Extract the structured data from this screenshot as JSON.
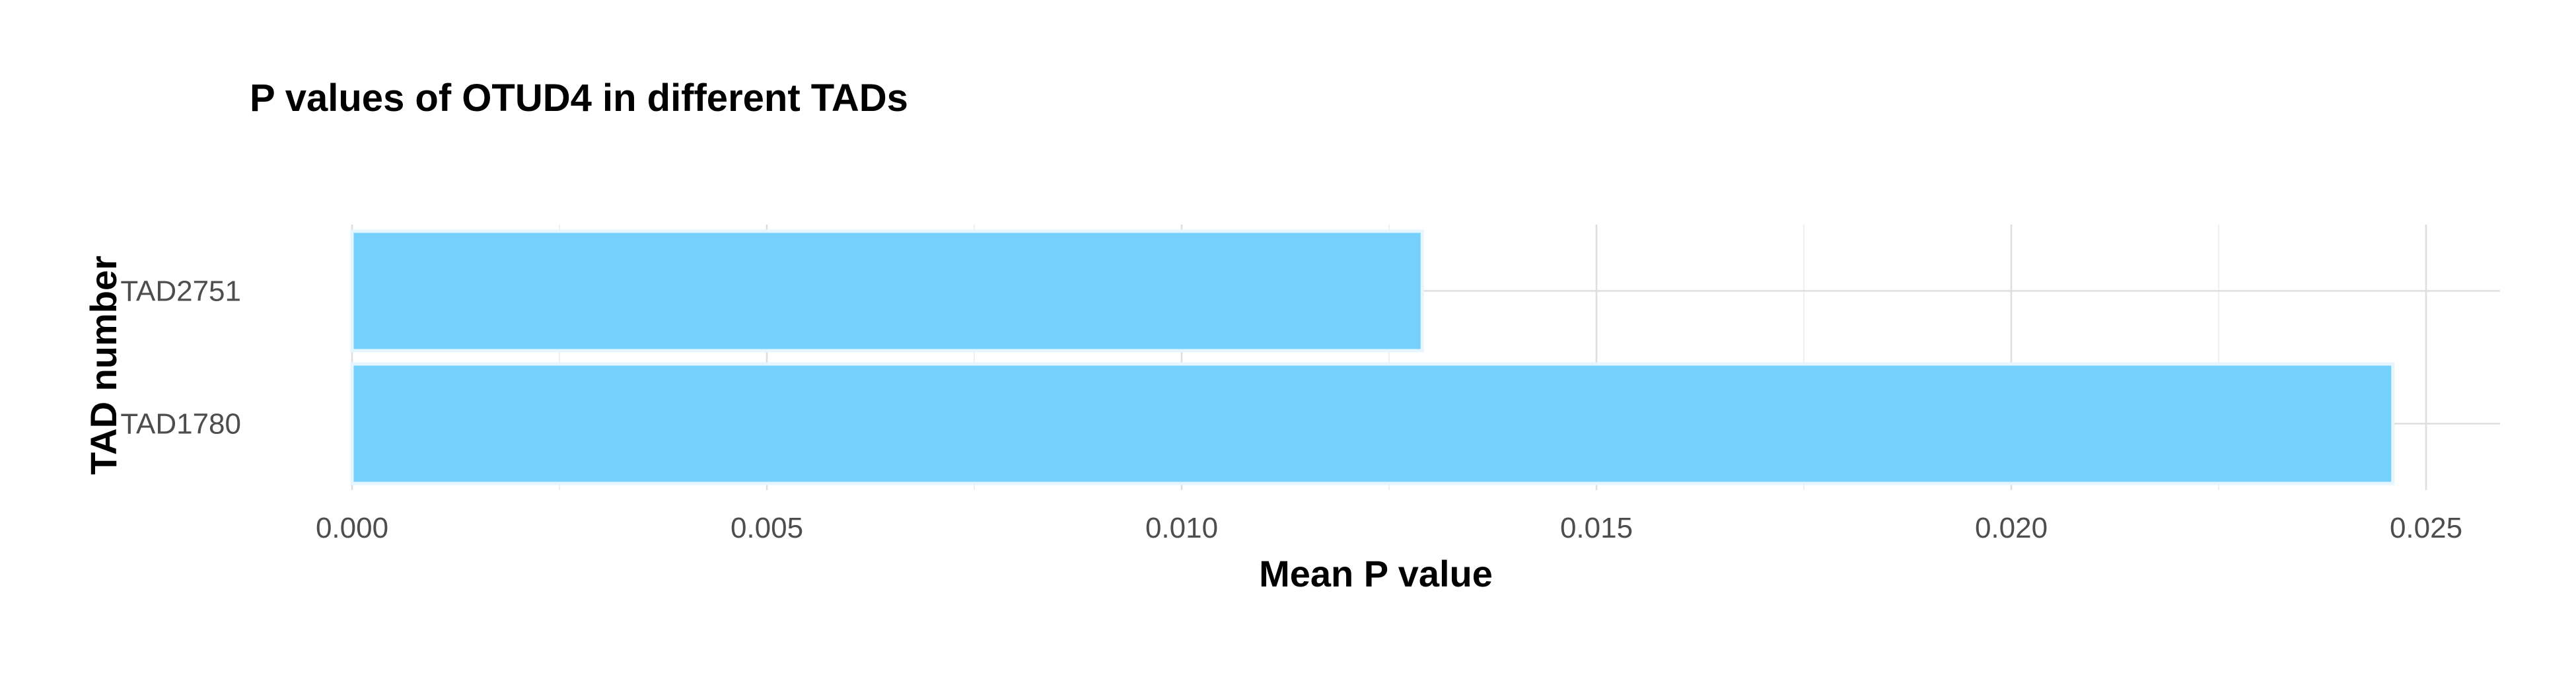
{
  "chart_data": {
    "type": "bar",
    "orientation": "horizontal",
    "title": "P values of OTUD4 in different TADs",
    "xlabel": "Mean P value",
    "ylabel": "TAD number",
    "categories": [
      "TAD2751",
      "TAD1780"
    ],
    "values": [
      0.0129,
      0.0246
    ],
    "xlim": [
      0,
      0.0259
    ],
    "xticks": [
      0.0,
      0.005,
      0.01,
      0.015,
      0.02,
      0.025
    ],
    "xtick_labels": [
      "0.000",
      "0.005",
      "0.010",
      "0.015",
      "0.020",
      "0.025"
    ],
    "grid": true,
    "legend": "none",
    "bar_color": "#75d0fc"
  }
}
